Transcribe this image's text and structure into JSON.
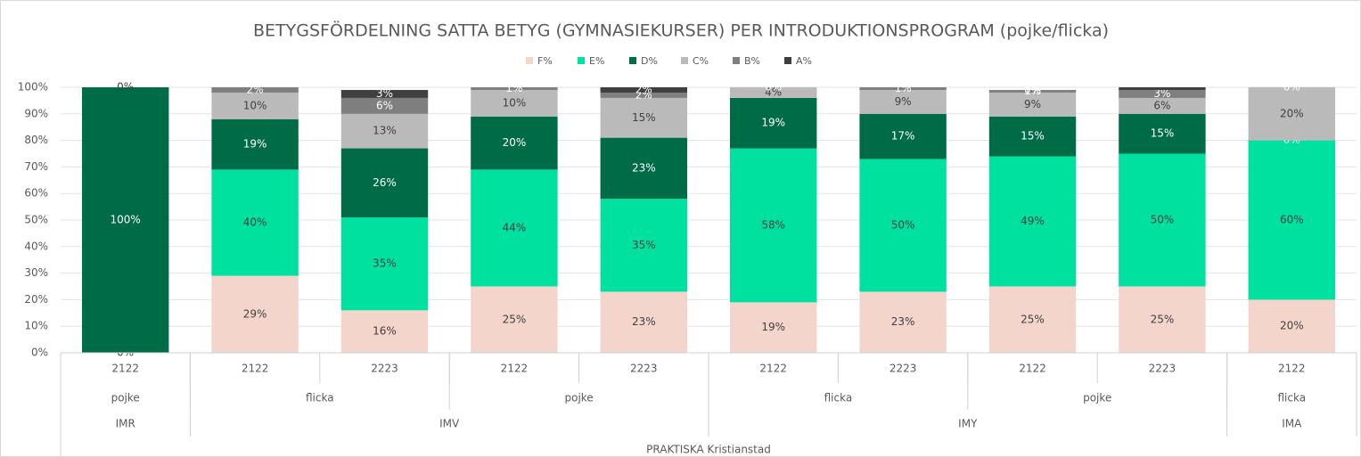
{
  "chart_data": {
    "type": "stacked_bar",
    "title": "BETYGSFÖRDELNING SATTA BETYG (GYMNASIEKURSER) PER INTRODUKTIONSPROGRAM (pojke/flicka)",
    "categories": [
      "2122",
      "2122",
      "2223",
      "2122",
      "2223",
      "2122",
      "2223",
      "2122",
      "2223",
      "2122"
    ],
    "gender_groups": [
      {
        "label": "pojke",
        "span": 1
      },
      {
        "label": "flicka",
        "span": 2
      },
      {
        "label": "pojke",
        "span": 2
      },
      {
        "label": "flicka",
        "span": 2
      },
      {
        "label": "pojke",
        "span": 2
      },
      {
        "label": "flicka",
        "span": 1
      }
    ],
    "program_groups": [
      {
        "label": "IMR",
        "span": 1
      },
      {
        "label": "IMV",
        "span": 4
      },
      {
        "label": "IMY",
        "span": 4
      },
      {
        "label": "IMA",
        "span": 1
      }
    ],
    "school": "PRAKTISKA Kristianstad",
    "series": [
      {
        "name": "F%",
        "color": "#f4d5cc",
        "values": [
          0,
          29,
          16,
          25,
          23,
          19,
          23,
          25,
          25,
          20
        ],
        "value_labels": [
          "0%",
          "29%",
          "16%",
          "25%",
          "23%",
          "19%",
          "23%",
          "25%",
          "25%",
          "20%"
        ]
      },
      {
        "name": "E%",
        "color": "#00e09e",
        "values": [
          0,
          40,
          35,
          44,
          35,
          58,
          50,
          49,
          50,
          60
        ],
        "value_labels": [
          null,
          "40%",
          "35%",
          "44%",
          "35%",
          "58%",
          "50%",
          "49%",
          "50%",
          "60%"
        ]
      },
      {
        "name": "D%",
        "color": "#006b47",
        "values": [
          100,
          19,
          26,
          20,
          23,
          19,
          17,
          15,
          15,
          0
        ],
        "value_labels": [
          "100%",
          "19%",
          "26%",
          "20%",
          "23%",
          "19%",
          "17%",
          "15%",
          "15%",
          "0%"
        ]
      },
      {
        "name": "C%",
        "color": "#bababa",
        "values": [
          0,
          10,
          13,
          10,
          15,
          4,
          9,
          9,
          6,
          20
        ],
        "value_labels": [
          "0%",
          "10%",
          "13%",
          "10%",
          "15%",
          "4%",
          "9%",
          "9%",
          "6%",
          "20%"
        ]
      },
      {
        "name": "B%",
        "color": "#7f7f7f",
        "values": [
          0,
          2,
          6,
          1,
          2,
          0,
          1,
          1,
          3,
          0
        ],
        "value_labels": [
          null,
          "2%",
          "6%",
          "1%",
          "2%",
          "0%",
          "1%",
          "1%",
          "3%",
          "0%"
        ]
      },
      {
        "name": "A%",
        "color": "#3f3f3f",
        "values": [
          0,
          0,
          3,
          0,
          2,
          0,
          0,
          0,
          1,
          0
        ],
        "value_labels": [
          null,
          null,
          "3%",
          null,
          "2%",
          null,
          null,
          "0%",
          null,
          null
        ]
      }
    ],
    "ylim": [
      0,
      100
    ],
    "yticks": [
      {
        "value": 0,
        "label": "0%"
      },
      {
        "value": 10,
        "label": "10%"
      },
      {
        "value": 20,
        "label": "20%"
      },
      {
        "value": 30,
        "label": "30%"
      },
      {
        "value": 40,
        "label": "40%"
      },
      {
        "value": 50,
        "label": "50%"
      },
      {
        "value": 60,
        "label": "60%"
      },
      {
        "value": 70,
        "label": "70%"
      },
      {
        "value": 80,
        "label": "80%"
      },
      {
        "value": 90,
        "label": "90%"
      },
      {
        "value": 100,
        "label": "100%"
      }
    ],
    "grid": true,
    "legend": "top"
  }
}
